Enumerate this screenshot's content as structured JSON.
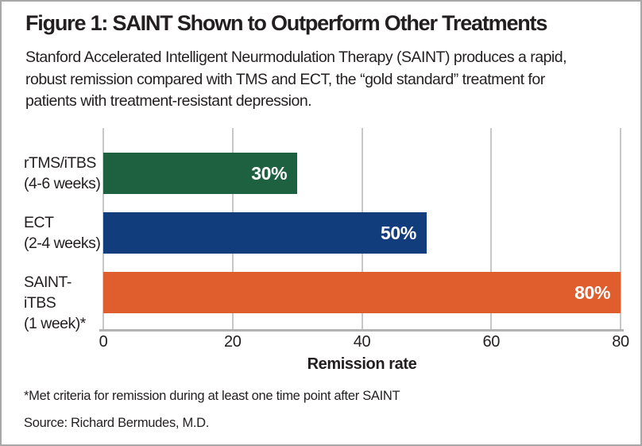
{
  "figure": {
    "title": "Figure 1: SAINT Shown to Outperform Other Treatments",
    "subtitle_lines": [
      "Stanford Accelerated Intelligent Neurmodulation Therapy (SAINT) produces a rapid,",
      "robust remission compared with TMS and ECT, the “gold standard” treatment for",
      "patients with treatment-resistant depression."
    ],
    "footnote": "*Met criteria for remission during at least one time point after SAINT",
    "source": "Source: Richard Bermudes, M.D."
  },
  "chart_data": {
    "type": "bar",
    "orientation": "horizontal",
    "title": "Figure 1: SAINT Shown to Outperform Other Treatments",
    "categories": [
      "rTMS/iTBS\n(4-6 weeks)",
      "ECT\n(2-4 weeks)",
      "SAINT-iTBS\n(1 week)*"
    ],
    "values": [
      30,
      50,
      80
    ],
    "value_labels": [
      "30%",
      "50%",
      "80%"
    ],
    "bar_colors": [
      "#1e6141",
      "#123d7c",
      "#e05d2d"
    ],
    "xlabel": "Remission rate",
    "xticks": [
      0,
      20,
      40,
      60,
      80
    ],
    "xlim": [
      0,
      80
    ],
    "grid": "vertical gridlines on",
    "legend": "none",
    "colors": {
      "gridline": "#c7c7c7",
      "axis_line": "#b3b3b3",
      "text": "#231f20",
      "value_label_text": "#ffffff",
      "figure_border": "#a8a8a8",
      "background": "#ffffff"
    }
  }
}
